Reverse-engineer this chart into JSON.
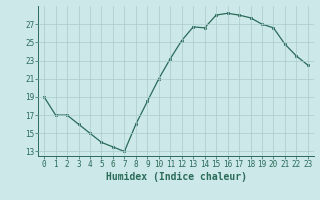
{
  "x": [
    0,
    1,
    2,
    3,
    4,
    5,
    6,
    7,
    8,
    9,
    10,
    11,
    12,
    13,
    14,
    15,
    16,
    17,
    18,
    19,
    20,
    21,
    22,
    23
  ],
  "y": [
    19,
    17,
    17,
    16,
    15,
    14,
    13.5,
    13,
    16,
    18.5,
    21,
    23.2,
    25.2,
    26.7,
    26.6,
    28,
    28.2,
    28,
    27.7,
    27,
    26.6,
    24.8,
    23.5,
    22.5
  ],
  "line_color": "#2a6b5a",
  "marker_color": "#2a6b5a",
  "bg_color": "#cce8e8",
  "grid_color": "#aacccc",
  "xlabel": "Humidex (Indice chaleur)",
  "yticks": [
    13,
    15,
    17,
    19,
    21,
    23,
    25,
    27
  ],
  "xtick_labels": [
    "0",
    "1",
    "2",
    "3",
    "4",
    "5",
    "6",
    "7",
    "8",
    "9",
    "10",
    "11",
    "12",
    "13",
    "14",
    "15",
    "16",
    "17",
    "18",
    "19",
    "20",
    "21",
    "22",
    "23"
  ],
  "ylim": [
    12.5,
    29
  ],
  "xlim": [
    -0.5,
    23.5
  ],
  "tick_fontsize": 5.5,
  "xlabel_fontsize": 7
}
